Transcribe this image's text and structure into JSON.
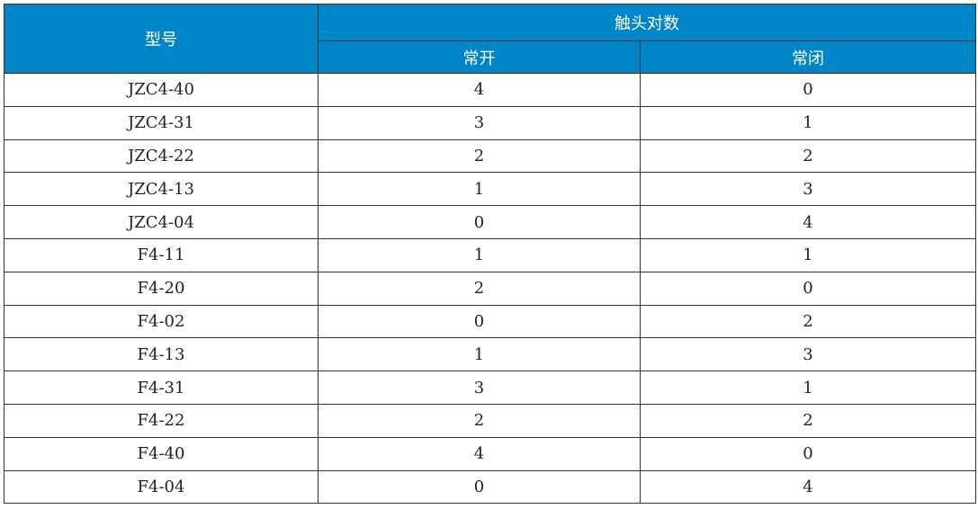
{
  "header": {
    "model": "型号",
    "contacts": "触头对数",
    "no": "常开",
    "nc": "常闭"
  },
  "rows": [
    [
      "JZC4-40",
      "4",
      "0"
    ],
    [
      "JZC4-31",
      "3",
      "1"
    ],
    [
      "JZC4-22",
      "2",
      "2"
    ],
    [
      "JZC4-13",
      "1",
      "3"
    ],
    [
      "JZC4-04",
      "0",
      "4"
    ],
    [
      "F4-11",
      "1",
      "1"
    ],
    [
      "F4-20",
      "2",
      "0"
    ],
    [
      "F4-02",
      "0",
      "2"
    ],
    [
      "F4-13",
      "1",
      "3"
    ],
    [
      "F4-31",
      "3",
      "1"
    ],
    [
      "F4-22",
      "2",
      "2"
    ],
    [
      "F4-40",
      "4",
      "0"
    ],
    [
      "F4-04",
      "0",
      "4"
    ]
  ],
  "colors": {
    "header_bg": "#0085c9"
  }
}
